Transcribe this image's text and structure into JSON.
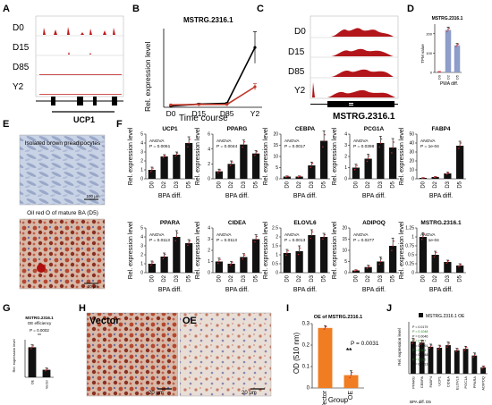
{
  "panels": {
    "A": {
      "letter": "A",
      "tracks": [
        "D0",
        "D15",
        "D85",
        "Y2"
      ],
      "gene": "UCP1"
    },
    "B": {
      "letter": "B",
      "title": "MSTRG.2316.1",
      "ylabel": "Rel. expression level",
      "xlabel": "Time course"
    },
    "C": {
      "letter": "C",
      "tracks": [
        "D0",
        "D15",
        "D85",
        "Y2"
      ],
      "gene": "MSTRG.2316.1"
    },
    "D": {
      "letter": "D",
      "title": "MSTRG.2316.1",
      "ylabel": "TPM value",
      "xlabel": "PWA diff."
    },
    "E": {
      "letter": "E",
      "label_top": "Isolated brown preadipocytes",
      "scale_top": "100 μm",
      "label_bottom": "Oil red O of mature BA (D5)",
      "scale_bottom": "20 μm"
    },
    "F": {
      "letter": "F",
      "ylabel": "Rel. expression level",
      "xlabel": "BPA diff."
    },
    "G": {
      "letter": "G",
      "title_line1": "MSTRG.2316.1",
      "title_line2": "OE efficiency",
      "pval": "P = 0.0002",
      "stars": "**",
      "ylabel": "Rel. expression level"
    },
    "H": {
      "letter": "H",
      "label_left": "Vector",
      "label_right": "OE",
      "scale": "20 μm"
    },
    "I": {
      "letter": "I",
      "title": "OE of MSTRG.2316.1",
      "ylabel": "OD (510 nm)",
      "xlabel": "Group",
      "pval": "P = 0.0031",
      "stars": "**"
    },
    "J": {
      "letter": "J",
      "legend": "MSTRG.2316.1 OE",
      "ylabel": "Rel. expression level",
      "xlabel": "BPA diff. D5"
    }
  },
  "chart_data": [
    {
      "id": "B",
      "type": "line",
      "title": "MSTRG.2316.1",
      "xlabel": "Time course",
      "ylabel": "Rel. expression level",
      "categories": [
        "D0",
        "D15",
        "D85",
        "Y2"
      ],
      "ylim": [
        0,
        50
      ],
      "series": [
        {
          "values": [
            0.8,
            2.0,
            2.5,
            38
          ],
          "errors": [
            0.3,
            0.5,
            0.5,
            10
          ],
          "color": "#000000"
        },
        {
          "values": [
            1.5,
            1.8,
            1.8,
            13
          ],
          "errors": [
            0.3,
            0.3,
            0.3,
            2
          ],
          "color": "#c0392b"
        }
      ]
    },
    {
      "id": "D",
      "type": "bar",
      "title": "MSTRG.2316.1",
      "xlabel": "PWA diff.",
      "ylabel": "TPM value",
      "categories": [
        "D0",
        "D2",
        "D5"
      ],
      "values": [
        3,
        220,
        140
      ],
      "errors": [
        1,
        15,
        10
      ],
      "ylim": [
        0,
        250
      ],
      "ticks": [
        0,
        100,
        200
      ],
      "color": "#8e9dc9"
    },
    {
      "id": "F1",
      "type": "bar",
      "title": "UCP1",
      "test": "ANOVA",
      "pval": "P = 0.0061",
      "categories": [
        "D0",
        "D2",
        "D3",
        "D5"
      ],
      "values": [
        1.0,
        2.5,
        2.7,
        4.0
      ],
      "errors": [
        0.3,
        0.2,
        0.3,
        0.7
      ],
      "ylim": [
        0,
        5
      ],
      "ticks": [
        0,
        1,
        2,
        3,
        4,
        5
      ]
    },
    {
      "id": "F2",
      "type": "bar",
      "title": "PPARG",
      "test": "ANOVA",
      "pval": "P = 0.0044",
      "categories": [
        "D0",
        "D2",
        "D3",
        "D5"
      ],
      "values": [
        1.0,
        2.0,
        4.6,
        3.4
      ],
      "errors": [
        0.3,
        0.4,
        0.6,
        0.4
      ],
      "ylim": [
        0,
        6
      ],
      "ticks": [
        0,
        2,
        4,
        6
      ]
    },
    {
      "id": "F3",
      "type": "bar",
      "title": "CEBPA",
      "test": "ANOVA",
      "pval": "P = 0.0017",
      "categories": [
        "D0",
        "D2",
        "D3",
        "D5"
      ],
      "values": [
        1.0,
        1.0,
        6.0,
        17.0
      ],
      "errors": [
        0.3,
        0.3,
        1.5,
        4.5
      ],
      "ylim": [
        0,
        20
      ],
      "ticks": [
        0,
        5,
        10,
        15,
        20
      ]
    },
    {
      "id": "F4",
      "type": "bar",
      "title": "PCG1A",
      "test": "ANOVA",
      "pval": "P = 0.0398",
      "categories": [
        "D0",
        "D2",
        "D3",
        "D5"
      ],
      "values": [
        1.0,
        1.8,
        3.2,
        2.8
      ],
      "errors": [
        0.3,
        0.4,
        0.6,
        0.8
      ],
      "ylim": [
        0,
        4
      ],
      "ticks": [
        0,
        1,
        2,
        3,
        4
      ]
    },
    {
      "id": "F5",
      "type": "bar",
      "title": "FABP4",
      "test": "ANOVA",
      "pval": "P = 1e-04",
      "categories": [
        "D0",
        "D2",
        "D3",
        "D5"
      ],
      "values": [
        1.0,
        2.0,
        6.0,
        37.0
      ],
      "errors": [
        0.3,
        0.5,
        1.5,
        5.0
      ],
      "ylim": [
        0,
        50
      ],
      "ticks": [
        0,
        10,
        20,
        30,
        40,
        50
      ]
    },
    {
      "id": "F6",
      "type": "bar",
      "title": "PPARA",
      "test": "ANOVA",
      "pval": "P = 0.0113",
      "categories": [
        "D0",
        "D2",
        "D3",
        "D5"
      ],
      "values": [
        1.0,
        1.8,
        4.0,
        3.3
      ],
      "errors": [
        0.3,
        0.4,
        0.7,
        0.4
      ],
      "ylim": [
        0,
        5
      ],
      "ticks": [
        0,
        1,
        2,
        3,
        4,
        5
      ]
    },
    {
      "id": "F7",
      "type": "bar",
      "title": "CIDEA",
      "test": "ANOVA",
      "pval": "P = 0.0113",
      "categories": [
        "D0",
        "D2",
        "D3",
        "D5"
      ],
      "values": [
        1.0,
        0.8,
        1.4,
        3.0
      ],
      "errors": [
        0.3,
        0.2,
        0.3,
        0.4
      ],
      "ylim": [
        0,
        4
      ],
      "ticks": [
        0,
        1,
        2,
        3,
        4
      ]
    },
    {
      "id": "F8",
      "type": "bar",
      "title": "ELOVL6",
      "test": "ANOVA",
      "pval": "P = 0.0013",
      "categories": [
        "D0",
        "D2",
        "D3",
        "D5"
      ],
      "values": [
        1.1,
        1.2,
        2.1,
        2.0
      ],
      "errors": [
        0.2,
        0.3,
        0.3,
        0.2
      ],
      "ylim": [
        0,
        2.5
      ],
      "ticks": [
        0,
        0.5,
        1,
        1.5,
        2,
        2.5
      ]
    },
    {
      "id": "F9",
      "type": "bar",
      "title": "ADIPOQ",
      "test": "ANOVA",
      "pval": "P = 0.0277",
      "categories": [
        "D0",
        "D2",
        "D3",
        "D5"
      ],
      "values": [
        1.0,
        2.5,
        5.0,
        12.0
      ],
      "errors": [
        0.3,
        0.8,
        2.0,
        3.5
      ],
      "ylim": [
        0,
        20
      ],
      "ticks": [
        0,
        5,
        10,
        15,
        20
      ]
    },
    {
      "id": "F10",
      "type": "bar",
      "title": "MSTRG.2316.1",
      "test": "ANOVA",
      "pval": "P = 1e-04",
      "categories": [
        "D0",
        "D2",
        "D3",
        "D5"
      ],
      "values": [
        1.0,
        0.5,
        0.3,
        0.2
      ],
      "errors": [
        0.12,
        0.1,
        0.05,
        0.05
      ],
      "ylim": [
        0,
        1.25
      ],
      "ticks": [
        0,
        0.25,
        0.5,
        0.75,
        1,
        1.25
      ]
    },
    {
      "id": "G",
      "type": "bar",
      "title": "MSTRG.2316.1 OE efficiency",
      "categories": [
        "OE",
        "Vector"
      ],
      "values": [
        1.0,
        0.25
      ],
      "errors": [
        0.08,
        0.06
      ],
      "ylim": [
        0,
        1.25
      ]
    },
    {
      "id": "I",
      "type": "bar",
      "title": "OE of MSTRG.2316.1",
      "xlabel": "Group",
      "ylabel": "OD (510 nm)",
      "categories": [
        "Vector",
        "OE"
      ],
      "values": [
        0.28,
        0.06
      ],
      "errors": [
        0.01,
        0.02
      ],
      "ylim": [
        0,
        0.3
      ],
      "ticks": [
        0,
        0.1,
        0.2,
        0.3
      ],
      "color": "#f07d22"
    },
    {
      "id": "J",
      "type": "bar",
      "xlabel": "BPA diff. D5",
      "ylabel": "Rel. expression level",
      "categories": [
        "PPARG",
        "CEBPA",
        "FABP4",
        "UCP1",
        "CIDEA",
        "ELOVL6",
        "PGC1A",
        "PPARA",
        "ADIPOQ"
      ],
      "values": [
        0.62,
        0.6,
        0.52,
        0.5,
        0.55,
        0.45,
        0.48,
        0.35,
        0.12
      ],
      "errors": [
        0.06,
        0.05,
        0.05,
        0.05,
        0.06,
        0.04,
        0.05,
        0.05,
        0.03
      ],
      "pvals": [
        "P = 0.0179",
        "P = 0.1048",
        "P = 0.0046",
        "P = 0.047",
        "P = 0.0291",
        "P = 0.004",
        "P = 0.0048",
        "P = 0.015",
        "P = 0.0013"
      ],
      "ylim": [
        0,
        1.0
      ]
    }
  ]
}
